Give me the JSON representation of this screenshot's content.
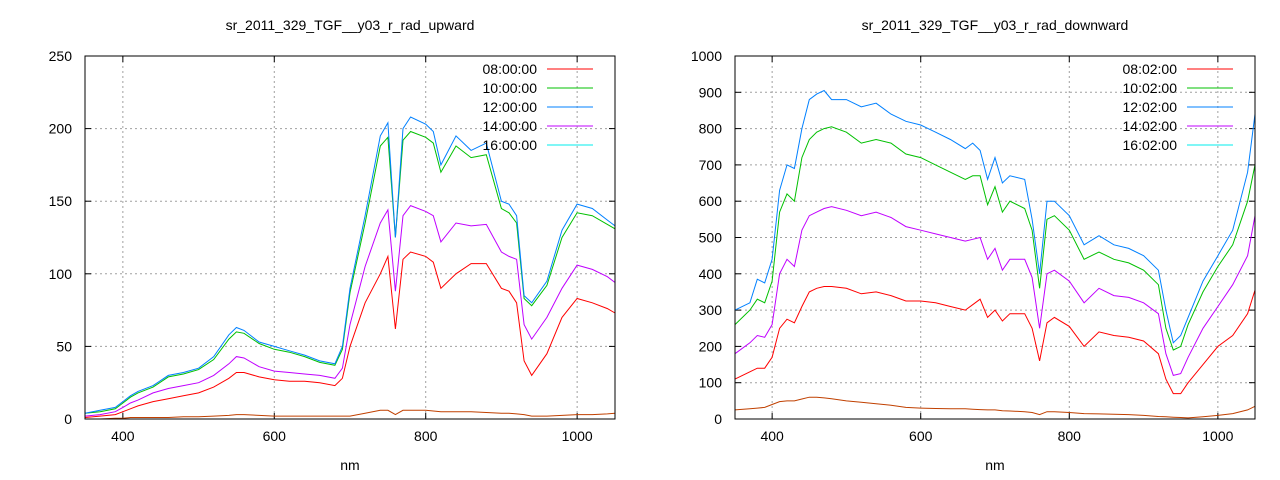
{
  "chart_data": [
    {
      "type": "line",
      "title": "sr_2011_329_TGF__y03_r_rad_upward",
      "xlabel": "nm",
      "ylabel": "",
      "xlim": [
        350,
        1050
      ],
      "ylim": [
        0,
        250
      ],
      "xticks": [
        400,
        600,
        800,
        1000
      ],
      "yticks": [
        0,
        50,
        100,
        150,
        200,
        250
      ],
      "grid": true,
      "legend_position": "top-right",
      "x": [
        350,
        370,
        390,
        400,
        410,
        420,
        440,
        460,
        480,
        500,
        520,
        540,
        550,
        560,
        580,
        600,
        620,
        640,
        660,
        680,
        690,
        700,
        720,
        740,
        750,
        760,
        770,
        780,
        800,
        810,
        820,
        840,
        860,
        880,
        900,
        910,
        920,
        930,
        940,
        960,
        980,
        1000,
        1020,
        1040,
        1050
      ],
      "series": [
        {
          "name": "08:00:00",
          "color": "#ff0000",
          "values": [
            1,
            2,
            3,
            5,
            7,
            9,
            12,
            14,
            16,
            18,
            22,
            28,
            32,
            32,
            29,
            27,
            26,
            26,
            25,
            23,
            28,
            50,
            80,
            100,
            112,
            62,
            110,
            115,
            112,
            108,
            90,
            100,
            107,
            107,
            90,
            88,
            80,
            40,
            30,
            45,
            70,
            83,
            80,
            76,
            73
          ]
        },
        {
          "name": "10:00:00",
          "color": "#00c000",
          "values": [
            4,
            5,
            7,
            11,
            15,
            18,
            22,
            29,
            31,
            34,
            41,
            55,
            60,
            59,
            52,
            48,
            46,
            43,
            39,
            37,
            48,
            87,
            135,
            188,
            194,
            125,
            192,
            198,
            194,
            190,
            170,
            188,
            180,
            182,
            145,
            142,
            135,
            83,
            78,
            92,
            125,
            142,
            140,
            134,
            131
          ]
        },
        {
          "name": "12:00:00",
          "color": "#0080ff",
          "values": [
            4,
            6,
            8,
            12,
            16,
            19,
            23,
            30,
            32,
            35,
            43,
            58,
            63,
            61,
            53,
            50,
            47,
            44,
            40,
            38,
            50,
            90,
            140,
            195,
            204,
            125,
            200,
            208,
            203,
            198,
            175,
            195,
            185,
            190,
            150,
            148,
            140,
            85,
            80,
            95,
            130,
            148,
            145,
            137,
            133
          ]
        },
        {
          "name": "14:00:00",
          "color": "#c000ff",
          "values": [
            2,
            3,
            5,
            8,
            11,
            13,
            18,
            21,
            23,
            25,
            30,
            38,
            43,
            42,
            36,
            33,
            32,
            31,
            30,
            28,
            35,
            65,
            105,
            135,
            144,
            88,
            140,
            147,
            143,
            140,
            122,
            135,
            133,
            134,
            115,
            112,
            110,
            65,
            55,
            70,
            90,
            106,
            103,
            98,
            94
          ]
        },
        {
          "name": "16:00:00",
          "color": "#00eeee",
          "line_color": "#c04000",
          "values": [
            0,
            0,
            0.5,
            0.5,
            1,
            1,
            1,
            1,
            1.5,
            1.5,
            2,
            2.5,
            3,
            3,
            2.5,
            2,
            2,
            2,
            2,
            2,
            2,
            2,
            4,
            6,
            6,
            3,
            6,
            6,
            6,
            5.5,
            5,
            5,
            5,
            4.5,
            4,
            4,
            3.5,
            3,
            2,
            2,
            2.5,
            3,
            3,
            3.5,
            4
          ]
        }
      ]
    },
    {
      "type": "line",
      "title": "sr_2011_329_TGF__y03_r_rad_downward",
      "xlabel": "nm",
      "ylabel": "",
      "xlim": [
        350,
        1050
      ],
      "ylim": [
        0,
        1000
      ],
      "xticks": [
        400,
        600,
        800,
        1000
      ],
      "yticks": [
        0,
        100,
        200,
        300,
        400,
        500,
        600,
        700,
        800,
        900,
        1000
      ],
      "grid": true,
      "legend_position": "top-right",
      "x": [
        350,
        370,
        380,
        390,
        400,
        410,
        420,
        430,
        440,
        450,
        460,
        470,
        480,
        500,
        520,
        540,
        560,
        580,
        600,
        620,
        640,
        660,
        670,
        680,
        690,
        700,
        710,
        720,
        740,
        750,
        760,
        770,
        780,
        800,
        820,
        840,
        860,
        880,
        900,
        920,
        930,
        940,
        950,
        960,
        980,
        1000,
        1020,
        1040,
        1050
      ],
      "series": [
        {
          "name": "08:02:00",
          "color": "#ff0000",
          "values": [
            110,
            130,
            140,
            140,
            170,
            250,
            275,
            265,
            310,
            350,
            360,
            365,
            365,
            360,
            345,
            350,
            340,
            325,
            325,
            320,
            310,
            300,
            315,
            330,
            280,
            300,
            270,
            290,
            290,
            250,
            160,
            265,
            280,
            255,
            200,
            240,
            230,
            225,
            215,
            180,
            110,
            70,
            70,
            100,
            150,
            200,
            230,
            290,
            355
          ]
        },
        {
          "name": "10:02:00",
          "color": "#00c000",
          "values": [
            260,
            300,
            330,
            320,
            380,
            570,
            620,
            600,
            720,
            770,
            790,
            800,
            805,
            790,
            760,
            770,
            760,
            730,
            720,
            700,
            680,
            660,
            670,
            670,
            590,
            640,
            570,
            600,
            580,
            520,
            360,
            550,
            560,
            520,
            440,
            460,
            440,
            430,
            410,
            370,
            250,
            190,
            200,
            260,
            350,
            420,
            480,
            600,
            700
          ]
        },
        {
          "name": "12:02:00",
          "color": "#0080ff",
          "values": [
            300,
            320,
            385,
            375,
            440,
            630,
            700,
            690,
            800,
            880,
            895,
            905,
            880,
            880,
            860,
            870,
            840,
            820,
            810,
            790,
            770,
            745,
            760,
            740,
            660,
            720,
            650,
            670,
            660,
            550,
            400,
            600,
            600,
            560,
            480,
            505,
            480,
            470,
            450,
            410,
            300,
            210,
            230,
            280,
            380,
            450,
            520,
            680,
            840
          ]
        },
        {
          "name": "14:02:00",
          "color": "#c000ff",
          "values": [
            180,
            210,
            230,
            225,
            260,
            400,
            440,
            420,
            520,
            560,
            570,
            580,
            585,
            575,
            560,
            570,
            555,
            530,
            520,
            510,
            500,
            490,
            495,
            500,
            440,
            470,
            410,
            440,
            440,
            390,
            250,
            400,
            410,
            380,
            320,
            360,
            340,
            335,
            320,
            290,
            180,
            120,
            125,
            170,
            250,
            310,
            370,
            450,
            560
          ]
        },
        {
          "name": "16:02:00",
          "color": "#00eeee",
          "line_color": "#c04000",
          "values": [
            25,
            28,
            30,
            32,
            40,
            48,
            50,
            50,
            55,
            60,
            60,
            58,
            56,
            50,
            46,
            42,
            38,
            32,
            30,
            29,
            28,
            28,
            27,
            26,
            25,
            25,
            23,
            22,
            20,
            18,
            12,
            20,
            20,
            18,
            15,
            14,
            13,
            12,
            10,
            7,
            6,
            5,
            4,
            3,
            6,
            10,
            15,
            25,
            35
          ]
        }
      ]
    }
  ]
}
